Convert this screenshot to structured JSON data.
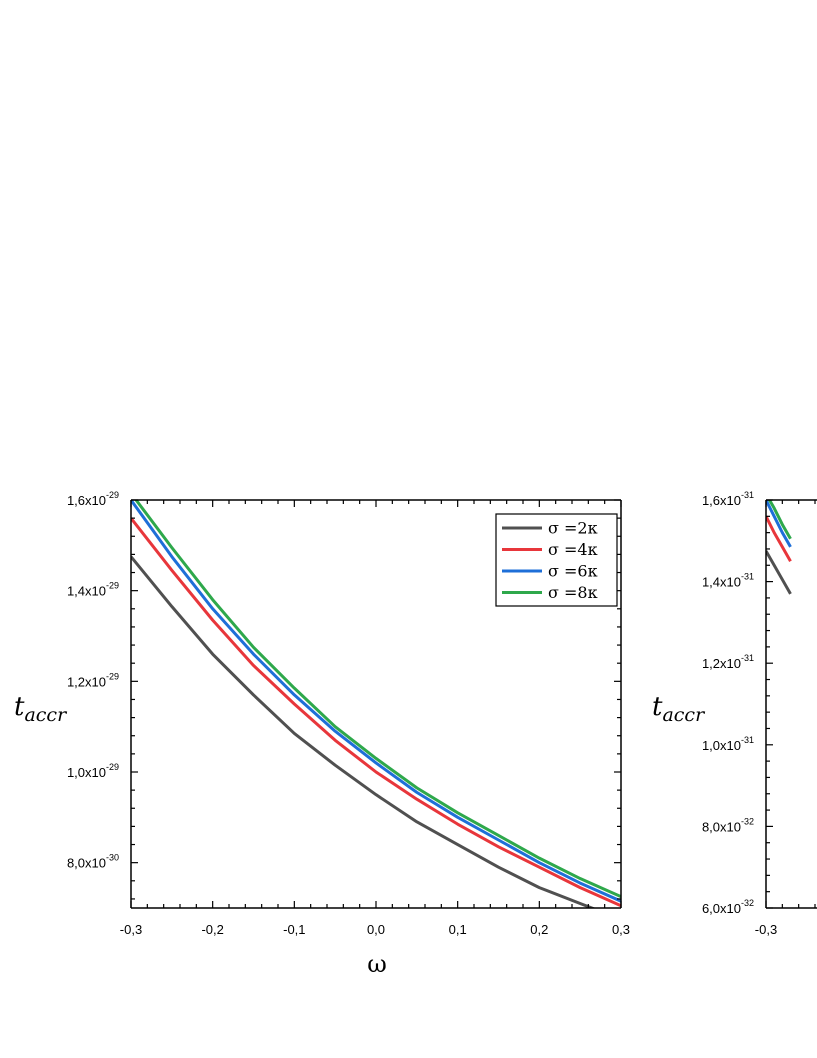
{
  "colors": {
    "s2": "#505050",
    "s4": "#e8363b",
    "s6": "#1e6fd8",
    "s8": "#2ea84b",
    "axis": "#000000"
  },
  "chart_data": [
    {
      "type": "line",
      "title": "",
      "xlabel": "ω",
      "ylabel": "t_accr",
      "ylabel_main": "t",
      "ylabel_sub": "accr",
      "xlim": [
        -0.3,
        0.3
      ],
      "ylim": [
        7e-30,
        1.6e-29
      ],
      "x_ticks": [
        {
          "value": -0.3,
          "label": "-0,3"
        },
        {
          "value": -0.2,
          "label": "-0,2"
        },
        {
          "value": -0.1,
          "label": "-0,1"
        },
        {
          "value": 0.0,
          "label": "0,0"
        },
        {
          "value": 0.1,
          "label": "0,1"
        },
        {
          "value": 0.2,
          "label": "0,2"
        },
        {
          "value": 0.3,
          "label": "0,3"
        }
      ],
      "y_ticks": [
        {
          "value": 8e-30,
          "mant": "8,0x10",
          "exp": "-30"
        },
        {
          "value": 1e-29,
          "mant": "1,0x10",
          "exp": "-29"
        },
        {
          "value": 1.2e-29,
          "mant": "1,2x10",
          "exp": "-29"
        },
        {
          "value": 1.4e-29,
          "mant": "1,4x10",
          "exp": "-29"
        },
        {
          "value": 1.6e-29,
          "mant": "1,6x10",
          "exp": "-29"
        }
      ],
      "x": [
        -0.3,
        -0.25,
        -0.2,
        -0.15,
        -0.1,
        -0.05,
        0.0,
        0.05,
        0.1,
        0.15,
        0.2,
        0.25,
        0.3
      ],
      "series": [
        {
          "name": "σ =2κ",
          "color_key": "s2",
          "values": [
            1.475e-29,
            1.365e-29,
            1.26e-29,
            1.17e-29,
            1.085e-29,
            1.015e-29,
            9.5e-30,
            8.9e-30,
            8.4e-30,
            7.9e-30,
            7.45e-30,
            7.1e-30,
            6.75e-30
          ]
        },
        {
          "name": "σ =4κ",
          "color_key": "s4",
          "values": [
            1.56e-29,
            1.445e-29,
            1.335e-29,
            1.235e-29,
            1.15e-29,
            1.07e-29,
            1e-29,
            9.4e-30,
            8.85e-30,
            8.35e-30,
            7.9e-30,
            7.45e-30,
            7.05e-30
          ]
        },
        {
          "name": "σ =6κ",
          "color_key": "s6",
          "values": [
            1.6e-29,
            1.475e-29,
            1.36e-29,
            1.26e-29,
            1.17e-29,
            1.09e-29,
            1.02e-29,
            9.55e-30,
            9e-30,
            8.5e-30,
            8e-30,
            7.55e-30,
            7.15e-30
          ]
        },
        {
          "name": "σ =8κ",
          "color_key": "s8",
          "values": [
            1.615e-29,
            1.495e-29,
            1.38e-29,
            1.275e-29,
            1.185e-29,
            1.1e-29,
            1.03e-29,
            9.65e-30,
            9.1e-30,
            8.6e-30,
            8.1e-30,
            7.65e-30,
            7.25e-30
          ]
        }
      ],
      "legend_position": "top-right"
    },
    {
      "type": "line",
      "title": "",
      "xlabel": "",
      "ylabel": "t_accr",
      "ylabel_main": "t",
      "ylabel_sub": "accr",
      "xlim": [
        -0.3,
        0.3
      ],
      "ylim": [
        6e-32,
        1.6e-31
      ],
      "x_ticks": [
        {
          "value": -0.3,
          "label": "-0,3"
        }
      ],
      "y_ticks": [
        {
          "value": 6e-32,
          "mant": "6,0x10",
          "exp": "-32"
        },
        {
          "value": 8e-32,
          "mant": "8,0x10",
          "exp": "-32"
        },
        {
          "value": 1e-31,
          "mant": "1,0x10",
          "exp": "-31"
        },
        {
          "value": 1.2e-31,
          "mant": "1,2x10",
          "exp": "-31"
        },
        {
          "value": 1.4e-31,
          "mant": "1,4x10",
          "exp": "-31"
        },
        {
          "value": 1.6e-31,
          "mant": "1,6x10",
          "exp": "-31"
        }
      ],
      "x": [
        -0.3,
        -0.29,
        -0.28,
        -0.27
      ],
      "series": [
        {
          "color_key": "s2",
          "values": [
            1.475e-31,
            1.44e-31,
            1.405e-31,
            1.37e-31
          ]
        },
        {
          "color_key": "s4",
          "values": [
            1.56e-31,
            1.52e-31,
            1.485e-31,
            1.45e-31
          ]
        },
        {
          "color_key": "s6",
          "values": [
            1.6e-31,
            1.56e-31,
            1.52e-31,
            1.485e-31
          ]
        },
        {
          "color_key": "s8",
          "values": [
            1.615e-31,
            1.58e-31,
            1.54e-31,
            1.505e-31
          ]
        }
      ]
    }
  ]
}
